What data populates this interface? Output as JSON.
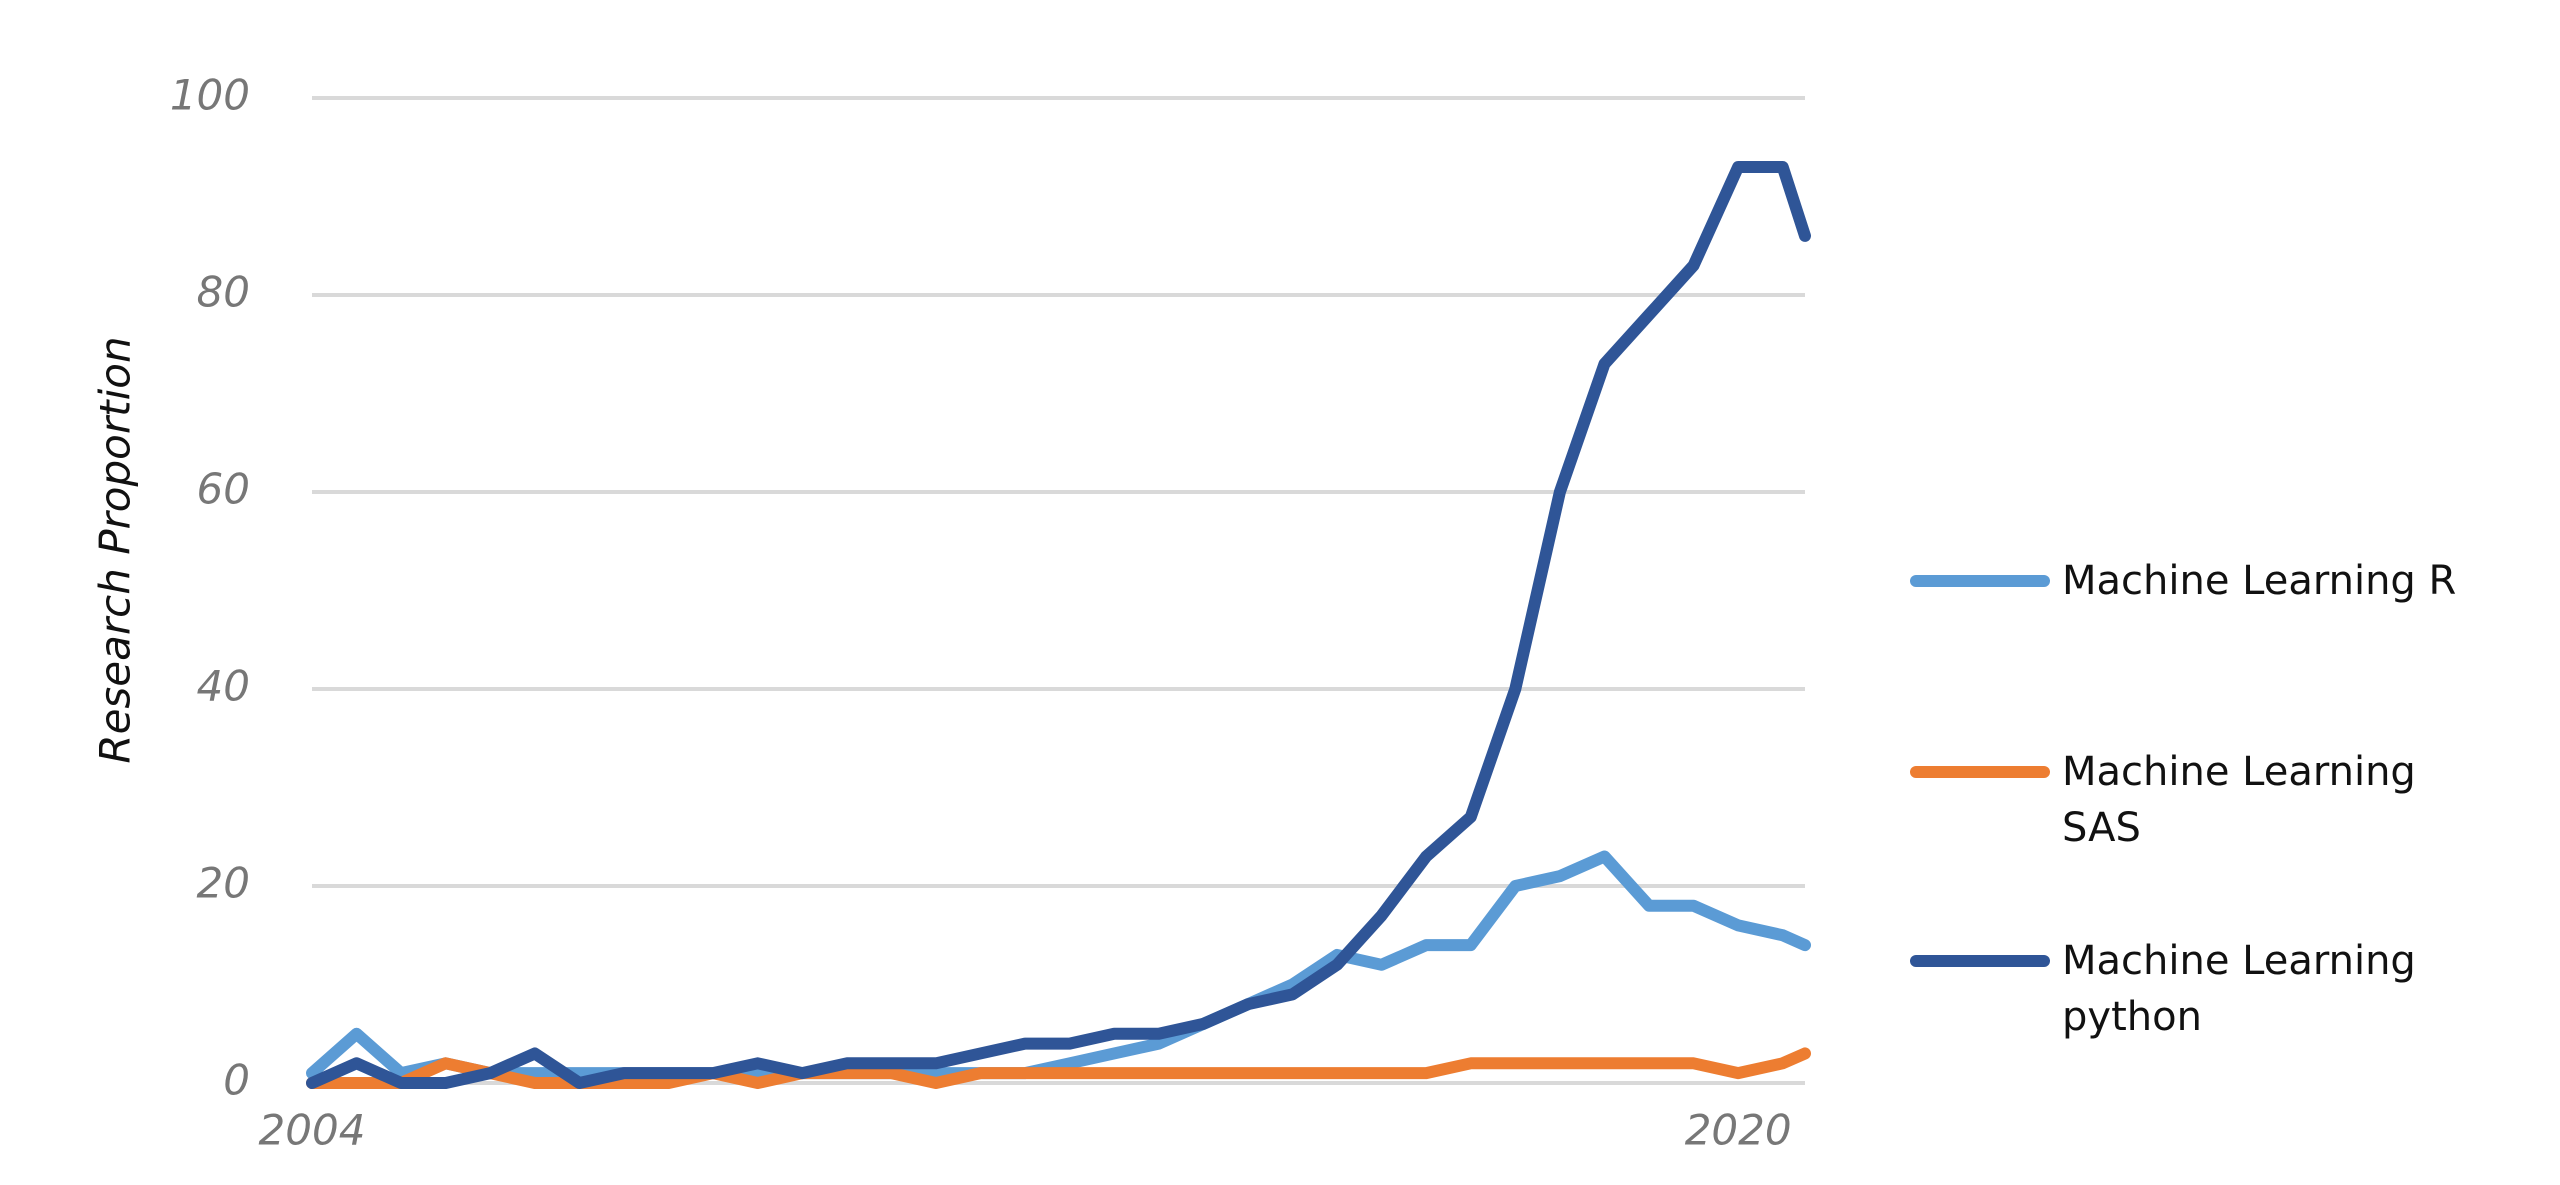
{
  "chart_data": {
    "type": "line",
    "y_label": "Research Proportion",
    "x": [
      2004,
      2004.5,
      2005,
      2005.5,
      2006,
      2006.5,
      2007,
      2007.5,
      2008,
      2008.5,
      2009,
      2009.5,
      2010,
      2010.5,
      2011,
      2011.5,
      2012,
      2012.5,
      2013,
      2013.5,
      2014,
      2014.5,
      2015,
      2015.5,
      2016,
      2016.5,
      2017,
      2017.5,
      2018,
      2018.5,
      2019,
      2019.5,
      2020,
      2020.5,
      2020.75
    ],
    "xlim": [
      2004,
      2020.75
    ],
    "xticks": [
      2004,
      2020
    ],
    "ylim": [
      0,
      100
    ],
    "yticks": [
      0,
      20,
      40,
      60,
      80,
      100
    ],
    "grid": true,
    "series": [
      {
        "name": "Machine Learning R",
        "color": "#5b9bd5",
        "values": [
          1,
          5,
          1,
          2,
          1,
          1,
          1,
          1,
          1,
          1,
          1,
          1,
          1,
          1,
          1,
          1,
          1,
          2,
          3,
          4,
          6,
          8,
          10,
          13,
          12,
          14,
          14,
          20,
          21,
          23,
          18,
          18,
          16,
          15,
          14
        ]
      },
      {
        "name": "Machine Learning SAS",
        "color": "#ed7d31",
        "values": [
          0,
          0,
          0,
          2,
          1,
          0,
          0,
          0,
          0,
          1,
          0,
          1,
          1,
          1,
          0,
          1,
          1,
          1,
          1,
          1,
          1,
          1,
          1,
          1,
          1,
          1,
          2,
          2,
          2,
          2,
          2,
          2,
          1,
          2,
          3
        ]
      },
      {
        "name": "Machine Learning python",
        "color": "#2f5597",
        "values": [
          0,
          2,
          0,
          0,
          1,
          3,
          0,
          1,
          1,
          1,
          2,
          1,
          2,
          2,
          2,
          3,
          4,
          4,
          5,
          5,
          6,
          8,
          9,
          12,
          17,
          23,
          27,
          40,
          60,
          73,
          78,
          83,
          93,
          93,
          86
        ]
      }
    ]
  }
}
